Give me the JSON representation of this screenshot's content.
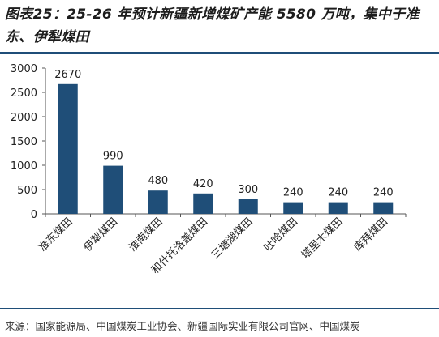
{
  "figure": {
    "title": "图表25：25-26 年预计新疆新增煤矿产能 5580 万吨，集中于准东、伊犁煤田",
    "source": "来源：国家能源局、中国煤炭工业协会、新疆国际实业有限公司官网、中国煤炭"
  },
  "chart_data": {
    "type": "bar",
    "categories": [
      "准东煤田",
      "伊犁煤田",
      "淮南煤田",
      "和什托洛盖煤田",
      "三塘湖煤田",
      "吐哈煤田",
      "塔里木煤田",
      "库拜煤田"
    ],
    "values": [
      2670,
      990,
      480,
      420,
      300,
      240,
      240,
      240
    ],
    "yticks": [
      0,
      500,
      1000,
      1500,
      2000,
      2500,
      3000
    ],
    "ylim": [
      0,
      3000
    ],
    "title": "",
    "xlabel": "",
    "ylabel": "",
    "grid": false,
    "legend": "none",
    "bar_color": "#1f4e78"
  }
}
